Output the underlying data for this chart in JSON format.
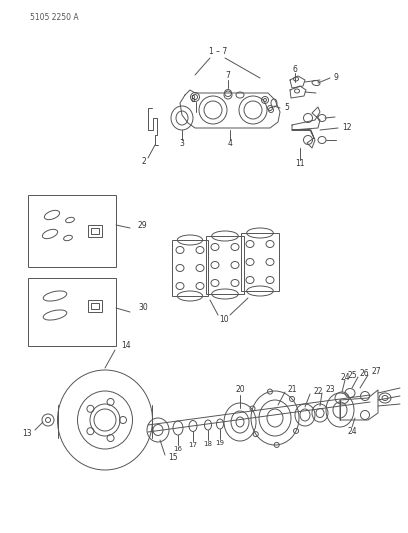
{
  "title": "5105 2250 A",
  "bg_color": "#ffffff",
  "lc": "#555555",
  "lw": 0.7
}
